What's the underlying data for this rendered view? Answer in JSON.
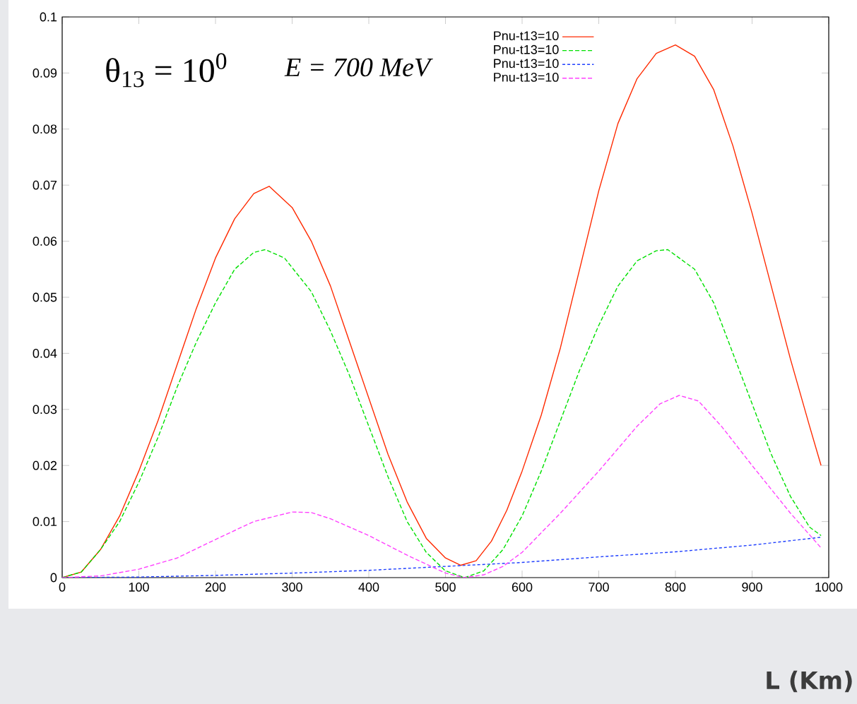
{
  "chart_data": {
    "type": "line",
    "xlabel": "L (Km)",
    "annotations": [
      "θ$_{13}$ = 10$^{0}$",
      "E = 700 MeV"
    ],
    "xlim": [
      0,
      1000
    ],
    "ylim": [
      0,
      0.1
    ],
    "xticks": [
      0,
      100,
      200,
      300,
      400,
      500,
      600,
      700,
      800,
      900,
      1000
    ],
    "yticks": [
      0,
      0.01,
      0.02,
      0.03,
      0.04,
      0.05,
      0.06,
      0.07,
      0.08,
      0.09,
      0.1
    ],
    "legend": "top",
    "series": [
      {
        "name": "Pnu-t13=10",
        "color": "#ff2a00",
        "line_style": "solid",
        "x": [
          0,
          25,
          50,
          75,
          100,
          125,
          150,
          175,
          200,
          225,
          250,
          270,
          300,
          325,
          350,
          375,
          400,
          425,
          450,
          475,
          500,
          520,
          540,
          560,
          580,
          600,
          625,
          650,
          675,
          700,
          725,
          750,
          775,
          800,
          825,
          850,
          875,
          900,
          925,
          950,
          975,
          990
        ],
        "values": [
          0,
          0.001,
          0.005,
          0.011,
          0.019,
          0.028,
          0.038,
          0.048,
          0.057,
          0.064,
          0.0685,
          0.0698,
          0.066,
          0.06,
          0.052,
          0.042,
          0.032,
          0.022,
          0.0135,
          0.007,
          0.0035,
          0.0022,
          0.003,
          0.0065,
          0.012,
          0.019,
          0.029,
          0.041,
          0.055,
          0.069,
          0.081,
          0.089,
          0.0935,
          0.095,
          0.093,
          0.087,
          0.077,
          0.065,
          0.052,
          0.039,
          0.027,
          0.02
        ]
      },
      {
        "name": "Pnu-t13=10",
        "color": "#00e000",
        "line_style": "dashed",
        "x": [
          0,
          25,
          50,
          75,
          100,
          125,
          150,
          175,
          200,
          225,
          250,
          265,
          290,
          325,
          350,
          375,
          400,
          425,
          450,
          475,
          500,
          525,
          550,
          575,
          600,
          625,
          650,
          675,
          700,
          725,
          750,
          775,
          790,
          825,
          850,
          875,
          900,
          925,
          950,
          975,
          990
        ],
        "values": [
          0,
          0.001,
          0.005,
          0.01,
          0.017,
          0.025,
          0.034,
          0.042,
          0.049,
          0.055,
          0.058,
          0.0585,
          0.057,
          0.051,
          0.044,
          0.036,
          0.027,
          0.018,
          0.01,
          0.0045,
          0.0012,
          0,
          0.0012,
          0.005,
          0.011,
          0.019,
          0.028,
          0.037,
          0.045,
          0.052,
          0.0565,
          0.0583,
          0.0585,
          0.055,
          0.049,
          0.04,
          0.031,
          0.022,
          0.0145,
          0.009,
          0.0075
        ]
      },
      {
        "name": "Pnu-t13=10",
        "color": "#2040ff",
        "line_style": "dashed",
        "x": [
          0,
          100,
          200,
          300,
          400,
          500,
          600,
          700,
          800,
          900,
          990
        ],
        "values": [
          0,
          0.0001,
          0.0004,
          0.0008,
          0.0013,
          0.002,
          0.0027,
          0.0037,
          0.0046,
          0.0058,
          0.0072
        ]
      },
      {
        "name": "Pnu-t13=10",
        "color": "#ff40ff",
        "line_style": "dashed",
        "x": [
          0,
          50,
          100,
          150,
          200,
          250,
          300,
          325,
          350,
          400,
          450,
          500,
          525,
          550,
          575,
          600,
          650,
          700,
          750,
          780,
          805,
          830,
          860,
          900,
          950,
          990
        ],
        "values": [
          0,
          0.0003,
          0.0015,
          0.0035,
          0.0068,
          0.01,
          0.0117,
          0.0116,
          0.0105,
          0.0075,
          0.004,
          0.0008,
          0,
          0.0005,
          0.002,
          0.0045,
          0.0115,
          0.019,
          0.027,
          0.031,
          0.0325,
          0.0315,
          0.027,
          0.02,
          0.0115,
          0.0053
        ]
      }
    ]
  }
}
